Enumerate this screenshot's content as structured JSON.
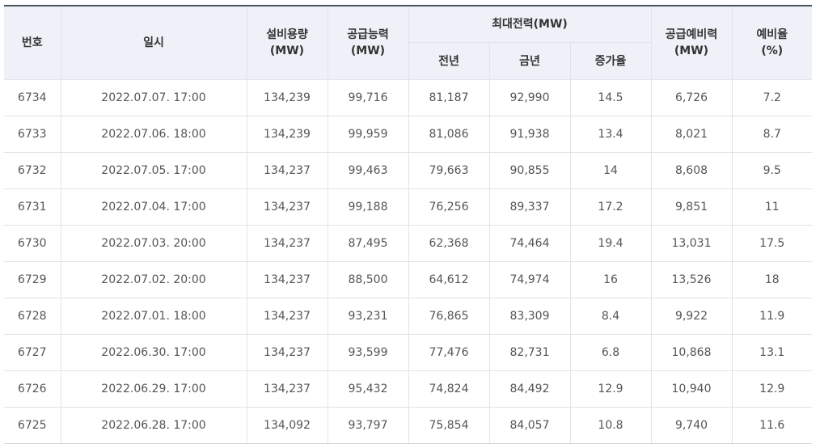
{
  "header": {
    "no": "번호",
    "datetime": "일시",
    "capacity": "설비용량",
    "capacity_unit": "(MW)",
    "supply": "공급능력",
    "supply_unit": "(MW)",
    "peak": "최대전력(MW)",
    "prev_year": "전년",
    "this_year": "금년",
    "growth": "증가율",
    "reserve": "공급예비력",
    "reserve_unit": "(MW)",
    "reserve_rate": "예비율",
    "reserve_rate_unit": "(%)"
  },
  "rows": [
    {
      "no": "6734",
      "datetime": "2022.07.07. 17:00",
      "capacity": "134,239",
      "supply": "99,716",
      "prev": "81,187",
      "cur": "92,990",
      "growth": "14.5",
      "reserve": "6,726",
      "rate": "7.2"
    },
    {
      "no": "6733",
      "datetime": "2022.07.06. 18:00",
      "capacity": "134,239",
      "supply": "99,959",
      "prev": "81,086",
      "cur": "91,938",
      "growth": "13.4",
      "reserve": "8,021",
      "rate": "8.7"
    },
    {
      "no": "6732",
      "datetime": "2022.07.05. 17:00",
      "capacity": "134,237",
      "supply": "99,463",
      "prev": "79,663",
      "cur": "90,855",
      "growth": "14",
      "reserve": "8,608",
      "rate": "9.5"
    },
    {
      "no": "6731",
      "datetime": "2022.07.04. 17:00",
      "capacity": "134,237",
      "supply": "99,188",
      "prev": "76,256",
      "cur": "89,337",
      "growth": "17.2",
      "reserve": "9,851",
      "rate": "11"
    },
    {
      "no": "6730",
      "datetime": "2022.07.03. 20:00",
      "capacity": "134,237",
      "supply": "87,495",
      "prev": "62,368",
      "cur": "74,464",
      "growth": "19.4",
      "reserve": "13,031",
      "rate": "17.5"
    },
    {
      "no": "6729",
      "datetime": "2022.07.02. 20:00",
      "capacity": "134,237",
      "supply": "88,500",
      "prev": "64,612",
      "cur": "74,974",
      "growth": "16",
      "reserve": "13,526",
      "rate": "18"
    },
    {
      "no": "6728",
      "datetime": "2022.07.01. 18:00",
      "capacity": "134,237",
      "supply": "93,231",
      "prev": "76,865",
      "cur": "83,309",
      "growth": "8.4",
      "reserve": "9,922",
      "rate": "11.9"
    },
    {
      "no": "6727",
      "datetime": "2022.06.30. 17:00",
      "capacity": "134,237",
      "supply": "93,599",
      "prev": "77,476",
      "cur": "82,731",
      "growth": "6.8",
      "reserve": "10,868",
      "rate": "13.1"
    },
    {
      "no": "6726",
      "datetime": "2022.06.29. 17:00",
      "capacity": "134,237",
      "supply": "95,432",
      "prev": "74,824",
      "cur": "84,492",
      "growth": "12.9",
      "reserve": "10,940",
      "rate": "12.9"
    },
    {
      "no": "6725",
      "datetime": "2022.06.28. 17:00",
      "capacity": "134,092",
      "supply": "93,797",
      "prev": "75,854",
      "cur": "84,057",
      "growth": "10.8",
      "reserve": "9,740",
      "rate": "11.6"
    }
  ]
}
